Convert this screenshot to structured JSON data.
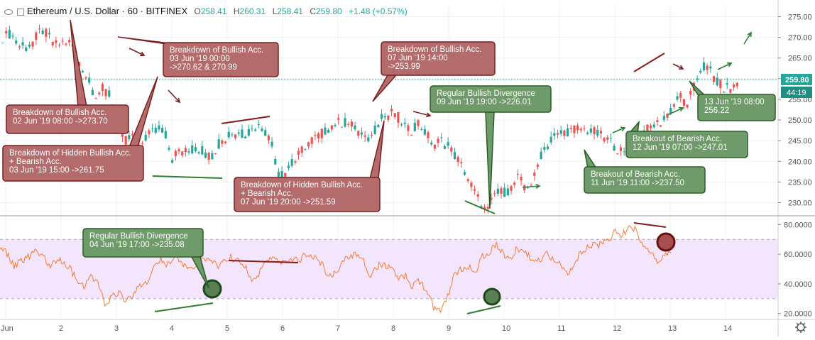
{
  "header": {
    "symbol": "Ethereum / U.S. Dollar · 60 · BITFINEX",
    "open_label": "O",
    "open": "258.41",
    "high_label": "H",
    "high": "260.31",
    "low_label": "L",
    "low": "258.41",
    "close_label": "C",
    "close": "259.80",
    "change": "+1.48 (+0.57%)"
  },
  "chart_data": [
    {
      "type": "candlestick",
      "title": "Ethereum / U.S. Dollar · 60 · BITFINEX",
      "price_axis": {
        "ticks": [
          "275.00",
          "270.00",
          "265.00",
          "260.00",
          "255.00",
          "250.00",
          "245.00",
          "240.00",
          "235.00",
          "230.00"
        ],
        "ylim": [
          227,
          278
        ]
      },
      "time_axis": {
        "ticks": [
          "Jun",
          "2",
          "3",
          "4",
          "5",
          "6",
          "7",
          "8",
          "9",
          "10",
          "11",
          "12",
          "13",
          "14"
        ]
      },
      "last_price": "259.80",
      "countdown": "44:19",
      "grid": true,
      "series": [
        {
          "name": "",
          "type": "price_path",
          "points": [
            [
              0,
              270
            ],
            [
              0.5,
              271
            ],
            [
              1,
              268
            ],
            [
              1.5,
              267.5
            ],
            [
              2,
              269
            ],
            [
              2.5,
              272
            ],
            [
              3,
              270
            ],
            [
              3.5,
              268
            ],
            [
              4,
              269
            ],
            [
              4.5,
              268.5
            ],
            [
              5,
              264
            ],
            [
              5.5,
              260
            ],
            [
              6,
              256
            ],
            [
              6.5,
              257.5
            ],
            [
              7,
              256
            ],
            [
              7.5,
              248
            ],
            [
              8,
              245
            ],
            [
              8.5,
              246
            ],
            [
              9,
              244
            ],
            [
              9.5,
              247
            ],
            [
              10,
              247.5
            ],
            [
              10.5,
              248
            ],
            [
              11,
              240.5
            ],
            [
              11.5,
              243
            ],
            [
              12,
              242
            ],
            [
              12.5,
              243
            ],
            [
              13,
              242.5
            ],
            [
              13.5,
              241
            ],
            [
              14,
              244
            ],
            [
              14.5,
              245.5
            ],
            [
              15,
              247
            ],
            [
              15.5,
              246.5
            ],
            [
              16,
              247
            ],
            [
              16.5,
              248.5
            ],
            [
              17,
              248
            ],
            [
              17.5,
              244
            ],
            [
              18,
              236
            ],
            [
              18.5,
              238
            ],
            [
              19,
              240
            ],
            [
              19.5,
              243
            ],
            [
              20,
              245
            ],
            [
              20.5,
              246
            ],
            [
              21,
              247.5
            ],
            [
              21.5,
              249
            ],
            [
              22,
              249.5
            ],
            [
              22.5,
              249
            ],
            [
              23,
              248
            ],
            [
              23.5,
              245
            ],
            [
              24,
              246
            ],
            [
              24.5,
              250
            ],
            [
              25,
              251
            ],
            [
              25.5,
              252
            ],
            [
              26,
              249
            ],
            [
              26.5,
              247
            ],
            [
              27,
              249.5
            ],
            [
              27.5,
              247
            ],
            [
              28,
              244
            ],
            [
              28.5,
              245
            ],
            [
              29,
              243.5
            ],
            [
              29.5,
              241
            ],
            [
              30,
              238
            ],
            [
              30.5,
              234
            ],
            [
              31,
              230.5
            ],
            [
              31.5,
              227.5
            ],
            [
              32,
              232
            ],
            [
              32.5,
              232.5
            ],
            [
              33,
              233
            ],
            [
              33.5,
              236
            ],
            [
              34,
              234
            ],
            [
              34.5,
              235
            ],
            [
              35,
              241.5
            ],
            [
              35.5,
              244
            ],
            [
              36,
              246
            ],
            [
              36.5,
              247
            ],
            [
              37,
              247.5
            ],
            [
              37.5,
              248
            ],
            [
              38,
              247.5
            ],
            [
              38.5,
              247
            ],
            [
              39,
              246
            ],
            [
              39.5,
              245
            ],
            [
              40,
              243
            ],
            [
              40.5,
              241.5
            ],
            [
              41,
              242
            ],
            [
              41.5,
              245
            ],
            [
              42,
              248
            ],
            [
              42.5,
              249
            ],
            [
              43,
              250
            ],
            [
              43.5,
              252.5
            ],
            [
              44,
              256
            ],
            [
              44.5,
              254
            ],
            [
              45,
              258
            ],
            [
              45.5,
              263
            ],
            [
              46,
              262
            ],
            [
              46.5,
              259
            ],
            [
              47,
              257.5
            ],
            [
              47.5,
              258
            ],
            [
              48,
              259.8
            ]
          ]
        },
        {
          "name": "",
          "type": "rsi",
          "ylim": [
            17,
            84
          ],
          "ticks": [
            "80.0000",
            "60.0000",
            "40.0000",
            "20.0000"
          ],
          "band": [
            30,
            70
          ],
          "points": [
            [
              0,
              66
            ],
            [
              0.5,
              60
            ],
            [
              1,
              52
            ],
            [
              1.5,
              55
            ],
            [
              2,
              58
            ],
            [
              2.5,
              63
            ],
            [
              3,
              60
            ],
            [
              3.5,
              52
            ],
            [
              4,
              56
            ],
            [
              4.5,
              55
            ],
            [
              5,
              50
            ],
            [
              5.5,
              44
            ],
            [
              6,
              38
            ],
            [
              6.5,
              45
            ],
            [
              7,
              40
            ],
            [
              7.5,
              27
            ],
            [
              8,
              31
            ],
            [
              8.5,
              34
            ],
            [
              9,
              28
            ],
            [
              9.5,
              33
            ],
            [
              10,
              38
            ],
            [
              10.5,
              40
            ],
            [
              11,
              52
            ],
            [
              11.5,
              56
            ],
            [
              12,
              53
            ],
            [
              12.5,
              57
            ],
            [
              13,
              55
            ],
            [
              13.5,
              50
            ],
            [
              14,
              53
            ],
            [
              14.5,
              56
            ],
            [
              15,
              57
            ],
            [
              15.5,
              52
            ],
            [
              16,
              55
            ],
            [
              16.5,
              58
            ],
            [
              17,
              56
            ],
            [
              17.5,
              52
            ],
            [
              18,
              44
            ],
            [
              18.5,
              47
            ],
            [
              19,
              55
            ],
            [
              19.5,
              58
            ],
            [
              20,
              54
            ],
            [
              20.5,
              56
            ],
            [
              21,
              58
            ],
            [
              21.5,
              57
            ],
            [
              22,
              61
            ],
            [
              22.5,
              58
            ],
            [
              23,
              54
            ],
            [
              23.5,
              44
            ],
            [
              24,
              48
            ],
            [
              24.5,
              55
            ],
            [
              25,
              58
            ],
            [
              25.5,
              60
            ],
            [
              26,
              55
            ],
            [
              26.5,
              45
            ],
            [
              27,
              52
            ],
            [
              27.5,
              53
            ],
            [
              28,
              49
            ],
            [
              28.5,
              44
            ],
            [
              29,
              46
            ],
            [
              29.5,
              38
            ],
            [
              30,
              42
            ],
            [
              30.5,
              36
            ],
            [
              31,
              24
            ],
            [
              31.5,
              21
            ],
            [
              32,
              32
            ],
            [
              32.5,
              46
            ],
            [
              33,
              50
            ],
            [
              33.5,
              52
            ],
            [
              34,
              48
            ],
            [
              34.5,
              58
            ],
            [
              35,
              62
            ],
            [
              35.5,
              66
            ],
            [
              36,
              60
            ],
            [
              36.5,
              58
            ],
            [
              37,
              64
            ],
            [
              37.5,
              62
            ],
            [
              38,
              57
            ],
            [
              38.5,
              55
            ],
            [
              39,
              60
            ],
            [
              39.5,
              58
            ],
            [
              40,
              55
            ],
            [
              40.5,
              47
            ],
            [
              41,
              50
            ],
            [
              41.5,
              62
            ],
            [
              42,
              64
            ],
            [
              42.5,
              66
            ],
            [
              43,
              67
            ],
            [
              43.5,
              70
            ],
            [
              44,
              75
            ],
            [
              44.5,
              73
            ],
            [
              45,
              78
            ],
            [
              45.5,
              76
            ],
            [
              46,
              64
            ],
            [
              46.5,
              62
            ],
            [
              47,
              56
            ],
            [
              47.5,
              58
            ],
            [
              48,
              61
            ]
          ]
        }
      ],
      "annotations": [
        {
          "kind": "red",
          "lines": [
            "Breakdown of Bullish Acc.",
            "02 Jun '19 08:00 ->273.70"
          ]
        },
        {
          "kind": "red",
          "lines": [
            "Breakdown of Hidden Bullish Acc.",
            "+ Bearish Acc.",
            "03 Jun '19 15:00 ->261.75"
          ]
        },
        {
          "kind": "red",
          "lines": [
            "Breakdown of Bullish Acc.",
            "03 Jun '19 00:00",
            "->270.62 & 270.99"
          ]
        },
        {
          "kind": "red",
          "lines": [
            "Breakdown of Bullish Acc.",
            "07 Jun '19 14:00",
            "->253.99"
          ]
        },
        {
          "kind": "red",
          "lines": [
            "Breakdown of Hidden Bullish Acc.",
            "+ Bearish Acc.",
            "07 Jun '19 20:00 ->251.59"
          ]
        },
        {
          "kind": "green",
          "lines": [
            "Regular Bullish Divergence",
            "09 Jun '19 19:00 ->226.01"
          ]
        },
        {
          "kind": "green",
          "lines": [
            "Breakout of Bearish Acc.",
            "11 Jun '19 11:00 ->237.50"
          ]
        },
        {
          "kind": "green",
          "lines": [
            "Breakout of Bearish Acc.",
            "12 Jun '19 07:00 ->247.01"
          ]
        },
        {
          "kind": "green",
          "lines": [
            "13 Jun '19 08:00",
            "256.22"
          ]
        },
        {
          "kind": "green",
          "lines": [
            "Regular Bullish Divergence",
            "04 Jun '19 17:00 ->235.08"
          ]
        }
      ]
    }
  ],
  "colors": {
    "up": "#26a69a",
    "down": "#ef5350",
    "red_box": "#b36b6b",
    "red_border": "#7a1f1f",
    "green_box": "#6f9a6a",
    "green_border": "#2b5e27",
    "rsi_line": "#f57c32",
    "rsi_band": "#f3e5fb",
    "divergence_bear": "#8b1a1a",
    "divergence_bull": "#2e7d32",
    "last_price": "#26a69a"
  },
  "icons": {
    "settings": "gear-icon"
  }
}
